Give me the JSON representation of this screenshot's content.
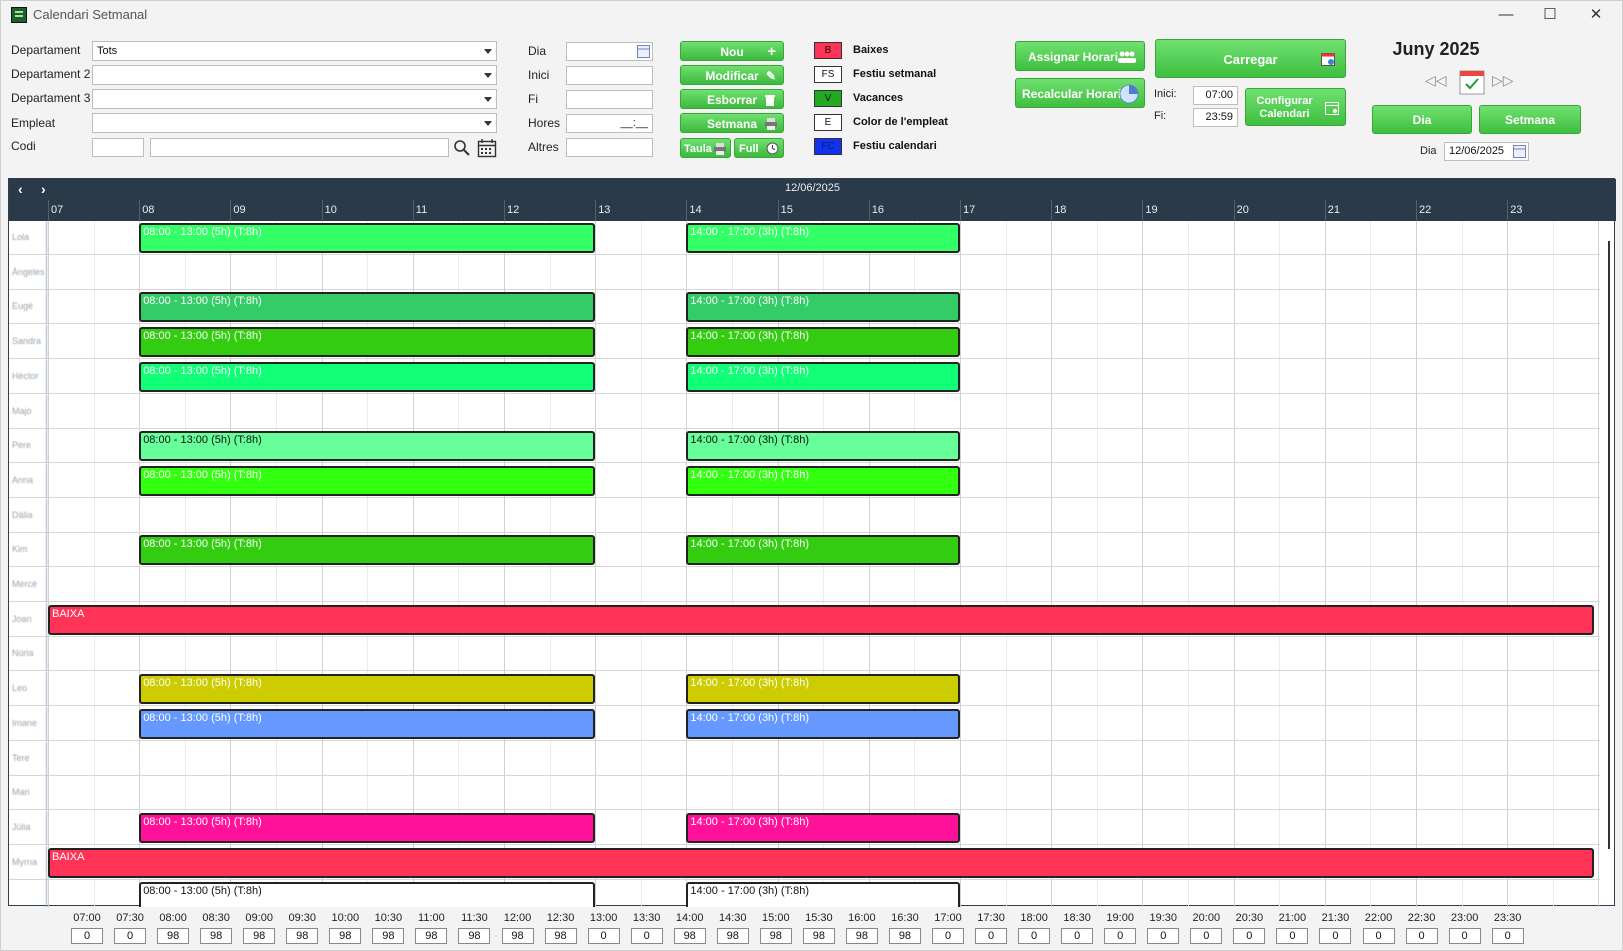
{
  "window": {
    "title": "Calendari Setmanal"
  },
  "form": {
    "departament_label": "Departament",
    "departament_value": "Tots",
    "departament2_label": "Departament 2",
    "departament3_label": "Departament 3",
    "empleat_label": "Empleat",
    "codi_label": "Codi",
    "dia_label": "Dia",
    "inici_label": "Inici",
    "fi_label": "Fi",
    "hores_label": "Hores",
    "hores_value": "__:__",
    "altres_label": "Altres"
  },
  "buttons": {
    "nou": "Nou",
    "modificar": "Modificar",
    "esborrar": "Esborrar",
    "setmana_print": "Setmana",
    "taula": "Taula",
    "full": "Full",
    "assignar_horari": "Assignar Horari",
    "recalcular_horari": "Recalcular Horari",
    "carregar": "Carregar",
    "configurar_calendari": "Configurar Calendari",
    "dia_view": "Dia",
    "setmana_view": "Setmana"
  },
  "legend": [
    {
      "code": "B",
      "label": "Baixes",
      "color": "#ff3355"
    },
    {
      "code": "FS",
      "label": "Festiu setmanal",
      "color": "#ffffff"
    },
    {
      "code": "V",
      "label": "Vacances",
      "color": "#22aa22"
    },
    {
      "code": "E",
      "label": "Color de l'empleat",
      "color": "#ffffff"
    },
    {
      "code": "FC",
      "label": "Festiu calendari",
      "color": "#1133ee"
    }
  ],
  "range": {
    "inici_label": "Inici:",
    "inici_value": "07:00",
    "fi_label": "Fi:",
    "fi_value": "23:59"
  },
  "calendar": {
    "month": "Juny 2025",
    "dia_label": "Dia",
    "dia_value": "12/06/2025"
  },
  "scheduler": {
    "date": "12/06/2025",
    "hours": [
      "07",
      "08",
      "09",
      "10",
      "11",
      "12",
      "13",
      "14",
      "15",
      "16",
      "17",
      "18",
      "19",
      "20",
      "21",
      "22",
      "23"
    ],
    "rows": [
      {
        "name": "Lola",
        "appts": [
          {
            "start": 8,
            "end": 13,
            "text": "08:00 - 13:00 (5h) (T:8h)",
            "color": "#33ff66",
            "textColor": "#ffffff"
          },
          {
            "start": 14,
            "end": 17,
            "text": "14:00 - 17:00 (3h) (T:8h)",
            "color": "#33ff66",
            "textColor": "#ffffff"
          }
        ]
      },
      {
        "name": "Àngeles",
        "appts": []
      },
      {
        "name": "Eugè",
        "appts": [
          {
            "start": 8,
            "end": 13,
            "text": "08:00 - 13:00 (5h) (T:8h)",
            "color": "#33cc66",
            "textColor": "#ffffff"
          },
          {
            "start": 14,
            "end": 17,
            "text": "14:00 - 17:00 (3h) (T:8h)",
            "color": "#33cc66",
            "textColor": "#ffffff"
          }
        ]
      },
      {
        "name": "Sandra",
        "appts": [
          {
            "start": 8,
            "end": 13,
            "text": "08:00 - 13:00 (5h) (T:8h)",
            "color": "#33cc11",
            "textColor": "#ffffff"
          },
          {
            "start": 14,
            "end": 17,
            "text": "14:00 - 17:00 (3h) (T:8h)",
            "color": "#33cc11",
            "textColor": "#ffffff"
          }
        ]
      },
      {
        "name": "Hèctor",
        "appts": [
          {
            "start": 8,
            "end": 13,
            "text": "08:00 - 13:00 (5h) (T:8h)",
            "color": "#11ff77",
            "textColor": "#ffffff"
          },
          {
            "start": 14,
            "end": 17,
            "text": "14:00 - 17:00 (3h) (T:8h)",
            "color": "#11ff77",
            "textColor": "#ffffff"
          }
        ]
      },
      {
        "name": "Majo",
        "appts": []
      },
      {
        "name": "Pere",
        "appts": [
          {
            "start": 8,
            "end": 13,
            "text": "08:00 - 13:00 (5h) (T:8h)",
            "color": "#66ff99",
            "textColor": "#111111"
          },
          {
            "start": 14,
            "end": 17,
            "text": "14:00 - 17:00 (3h) (T:8h)",
            "color": "#66ff99",
            "textColor": "#111111"
          }
        ]
      },
      {
        "name": "Anna",
        "appts": [
          {
            "start": 8,
            "end": 13,
            "text": "08:00 - 13:00 (5h) (T:8h)",
            "color": "#33ff11",
            "textColor": "#ffffff"
          },
          {
            "start": 14,
            "end": 17,
            "text": "14:00 - 17:00 (3h) (T:8h)",
            "color": "#33ff11",
            "textColor": "#ffffff"
          }
        ]
      },
      {
        "name": "Dàlia",
        "appts": []
      },
      {
        "name": "Kim",
        "appts": [
          {
            "start": 8,
            "end": 13,
            "text": "08:00 - 13:00 (5h) (T:8h)",
            "color": "#33cc11",
            "textColor": "#ffffff"
          },
          {
            "start": 14,
            "end": 17,
            "text": "14:00 - 17:00 (3h) (T:8h)",
            "color": "#33cc11",
            "textColor": "#ffffff"
          }
        ]
      },
      {
        "name": "Mercè",
        "appts": []
      },
      {
        "name": "Joan",
        "appts": [
          {
            "start": 7,
            "end": 24,
            "text": "BAIXA",
            "color": "#ff3355",
            "textColor": "#ffffff"
          }
        ]
      },
      {
        "name": "Núria",
        "appts": []
      },
      {
        "name": "Leo",
        "appts": [
          {
            "start": 8,
            "end": 13,
            "text": "08:00 - 13:00 (5h) (T:8h)",
            "color": "#cccc00",
            "textColor": "#ffffff"
          },
          {
            "start": 14,
            "end": 17,
            "text": "14:00 - 17:00 (3h) (T:8h)",
            "color": "#cccc00",
            "textColor": "#ffffff"
          }
        ]
      },
      {
        "name": "Imane",
        "appts": [
          {
            "start": 8,
            "end": 13,
            "text": "08:00 - 13:00 (5h) (T:8h)",
            "color": "#6699ff",
            "textColor": "#ffffff"
          },
          {
            "start": 14,
            "end": 17,
            "text": "14:00 - 17:00 (3h) (T:8h)",
            "color": "#6699ff",
            "textColor": "#ffffff"
          }
        ]
      },
      {
        "name": "Tere",
        "appts": []
      },
      {
        "name": "Mari",
        "appts": []
      },
      {
        "name": "Júlia",
        "appts": [
          {
            "start": 8,
            "end": 13,
            "text": "08:00 - 13:00 (5h) (T:8h)",
            "color": "#ff1199",
            "textColor": "#ffffff"
          },
          {
            "start": 14,
            "end": 17,
            "text": "14:00 - 17:00 (3h) (T:8h)",
            "color": "#ff1199",
            "textColor": "#ffffff"
          }
        ]
      },
      {
        "name": "Myrna",
        "appts": [
          {
            "start": 7,
            "end": 24,
            "text": "BAIXA",
            "color": "#ff3355",
            "textColor": "#ffffff"
          }
        ]
      },
      {
        "name": "",
        "appts": [
          {
            "start": 8,
            "end": 13,
            "text": "08:00 - 13:00 (5h) (T:8h)",
            "color": "#ffffff",
            "textColor": "#111111"
          },
          {
            "start": 14,
            "end": 17,
            "text": "14:00 - 17:00 (3h) (T:8h)",
            "color": "#ffffff",
            "textColor": "#111111"
          }
        ]
      }
    ]
  },
  "counters": [
    {
      "time": "07:00",
      "value": "0"
    },
    {
      "time": "07:30",
      "value": "0"
    },
    {
      "time": "08:00",
      "value": "98"
    },
    {
      "time": "08:30",
      "value": "98"
    },
    {
      "time": "09:00",
      "value": "98"
    },
    {
      "time": "09:30",
      "value": "98"
    },
    {
      "time": "10:00",
      "value": "98"
    },
    {
      "time": "10:30",
      "value": "98"
    },
    {
      "time": "11:00",
      "value": "98"
    },
    {
      "time": "11:30",
      "value": "98"
    },
    {
      "time": "12:00",
      "value": "98"
    },
    {
      "time": "12:30",
      "value": "98"
    },
    {
      "time": "13:00",
      "value": "0"
    },
    {
      "time": "13:30",
      "value": "0"
    },
    {
      "time": "14:00",
      "value": "98"
    },
    {
      "time": "14:30",
      "value": "98"
    },
    {
      "time": "15:00",
      "value": "98"
    },
    {
      "time": "15:30",
      "value": "98"
    },
    {
      "time": "16:00",
      "value": "98"
    },
    {
      "time": "16:30",
      "value": "98"
    },
    {
      "time": "17:00",
      "value": "0"
    },
    {
      "time": "17:30",
      "value": "0"
    },
    {
      "time": "18:00",
      "value": "0"
    },
    {
      "time": "18:30",
      "value": "0"
    },
    {
      "time": "19:00",
      "value": "0"
    },
    {
      "time": "19:30",
      "value": "0"
    },
    {
      "time": "20:00",
      "value": "0"
    },
    {
      "time": "20:30",
      "value": "0"
    },
    {
      "time": "21:00",
      "value": "0"
    },
    {
      "time": "21:30",
      "value": "0"
    },
    {
      "time": "22:00",
      "value": "0"
    },
    {
      "time": "22:30",
      "value": "0"
    },
    {
      "time": "23:00",
      "value": "0"
    },
    {
      "time": "23:30",
      "value": "0"
    }
  ]
}
